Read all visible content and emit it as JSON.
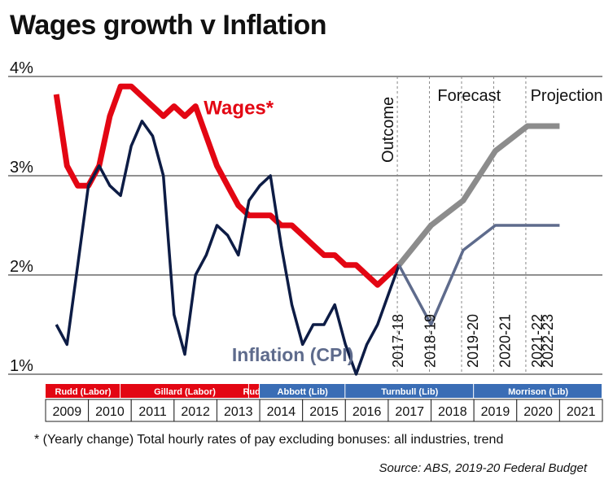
{
  "title": "Wages growth v Inflation",
  "footnote": "* (Yearly change) Total hourly rates of pay excluding bonuses: all industries, trend",
  "source": "Source: ABS, 2019-20 Federal Budget",
  "chart_data": {
    "type": "line",
    "title": "Wages growth v Inflation",
    "xlabel": "",
    "ylabel": "",
    "x_range": [
      2008.75,
      2021.75
    ],
    "ylim": [
      1,
      4
    ],
    "y_ticks": [
      {
        "value": 4,
        "label": "4%"
      },
      {
        "value": 3,
        "label": "3%"
      },
      {
        "value": 2,
        "label": "2%"
      },
      {
        "value": 1,
        "label": "1%"
      }
    ],
    "series": [
      {
        "name": "Wages*",
        "color": "#e30613",
        "points": [
          [
            2009.0,
            3.82
          ],
          [
            2009.25,
            3.1
          ],
          [
            2009.5,
            2.9
          ],
          [
            2009.75,
            2.9
          ],
          [
            2010.0,
            3.1
          ],
          [
            2010.25,
            3.6
          ],
          [
            2010.5,
            3.9
          ],
          [
            2010.75,
            3.9
          ],
          [
            2011.0,
            3.8
          ],
          [
            2011.25,
            3.7
          ],
          [
            2011.5,
            3.6
          ],
          [
            2011.75,
            3.7
          ],
          [
            2012.0,
            3.6
          ],
          [
            2012.25,
            3.7
          ],
          [
            2012.5,
            3.4
          ],
          [
            2012.75,
            3.1
          ],
          [
            2013.0,
            2.9
          ],
          [
            2013.25,
            2.7
          ],
          [
            2013.5,
            2.6
          ],
          [
            2013.75,
            2.6
          ],
          [
            2014.0,
            2.6
          ],
          [
            2014.25,
            2.5
          ],
          [
            2014.5,
            2.5
          ],
          [
            2014.75,
            2.4
          ],
          [
            2015.0,
            2.3
          ],
          [
            2015.25,
            2.2
          ],
          [
            2015.5,
            2.2
          ],
          [
            2015.75,
            2.1
          ],
          [
            2016.0,
            2.1
          ],
          [
            2016.25,
            2.0
          ],
          [
            2016.5,
            1.9
          ],
          [
            2016.75,
            2.0
          ],
          [
            2017.0,
            2.1
          ]
        ]
      },
      {
        "name": "Wages forecast",
        "color": "#8c8c8c",
        "points": [
          [
            2017.0,
            2.1
          ],
          [
            2017.75,
            2.5
          ],
          [
            2018.5,
            2.75
          ],
          [
            2019.25,
            3.25
          ],
          [
            2020.0,
            3.5
          ],
          [
            2020.75,
            3.5
          ]
        ]
      },
      {
        "name": "Inflation (CPI)",
        "color": "#0d1c45",
        "points": [
          [
            2009.0,
            1.5
          ],
          [
            2009.25,
            1.3
          ],
          [
            2009.5,
            2.1
          ],
          [
            2009.75,
            2.9
          ],
          [
            2010.0,
            3.1
          ],
          [
            2010.25,
            2.9
          ],
          [
            2010.5,
            2.8
          ],
          [
            2010.75,
            3.3
          ],
          [
            2011.0,
            3.55
          ],
          [
            2011.25,
            3.4
          ],
          [
            2011.5,
            3.0
          ],
          [
            2011.75,
            1.6
          ],
          [
            2012.0,
            1.2
          ],
          [
            2012.25,
            2.0
          ],
          [
            2012.5,
            2.2
          ],
          [
            2012.75,
            2.5
          ],
          [
            2013.0,
            2.4
          ],
          [
            2013.25,
            2.2
          ],
          [
            2013.5,
            2.75
          ],
          [
            2013.75,
            2.9
          ],
          [
            2014.0,
            3.0
          ],
          [
            2014.25,
            2.3
          ],
          [
            2014.5,
            1.7
          ],
          [
            2014.75,
            1.3
          ],
          [
            2015.0,
            1.5
          ],
          [
            2015.25,
            1.5
          ],
          [
            2015.5,
            1.7
          ],
          [
            2015.75,
            1.3
          ],
          [
            2016.0,
            1.0
          ],
          [
            2016.25,
            1.3
          ],
          [
            2016.5,
            1.5
          ],
          [
            2016.75,
            1.8
          ],
          [
            2017.0,
            2.1
          ]
        ]
      },
      {
        "name": "Inflation forecast",
        "color": "#5e6b8c",
        "points": [
          [
            2017.0,
            2.1
          ],
          [
            2017.75,
            1.5
          ],
          [
            2018.5,
            2.25
          ],
          [
            2019.25,
            2.5
          ],
          [
            2020.0,
            2.5
          ],
          [
            2020.75,
            2.5
          ]
        ]
      }
    ],
    "series_labels": [
      {
        "text": "Wages*",
        "color": "#e30613"
      },
      {
        "text": "Inflation (CPI)",
        "color": "#5e6b8c"
      }
    ],
    "region_labels": [
      "Outcome",
      "Forecast",
      "Projection"
    ],
    "region_dividers": [
      2017.0,
      2017.75,
      2018.5,
      2019.25,
      2020.0
    ],
    "fiscal_year_labels": [
      {
        "x": 2016.75,
        "text": "2017-18"
      },
      {
        "x": 2017.5,
        "text": "2018-19"
      },
      {
        "x": 2018.5,
        "text": "2019-20"
      },
      {
        "x": 2019.25,
        "text": "2020-21"
      },
      {
        "x": 2020.0,
        "text": "2021-22"
      },
      {
        "x": 2020.25,
        "text": "2022-23"
      }
    ],
    "governments": [
      {
        "name": "Rudd (Labor)",
        "start": 2008.75,
        "end": 2010.5,
        "color": "#e30613"
      },
      {
        "name": "Gillard (Labor)",
        "start": 2010.5,
        "end": 2013.5,
        "color": "#e30613"
      },
      {
        "name": "Rudd",
        "start": 2013.5,
        "end": 2013.75,
        "color": "#e30613"
      },
      {
        "name": "Abbott (Lib)",
        "start": 2013.75,
        "end": 2015.75,
        "color": "#3a6db5"
      },
      {
        "name": "Turnbull (Lib)",
        "start": 2015.75,
        "end": 2018.75,
        "color": "#3a6db5"
      },
      {
        "name": "Morrison (Lib)",
        "start": 2018.75,
        "end": 2021.75,
        "color": "#3a6db5"
      }
    ],
    "years": [
      "2009",
      "2010",
      "2011",
      "2012",
      "2013",
      "2014",
      "2015",
      "2016",
      "2017",
      "2018",
      "2019",
      "2020",
      "2021"
    ]
  }
}
